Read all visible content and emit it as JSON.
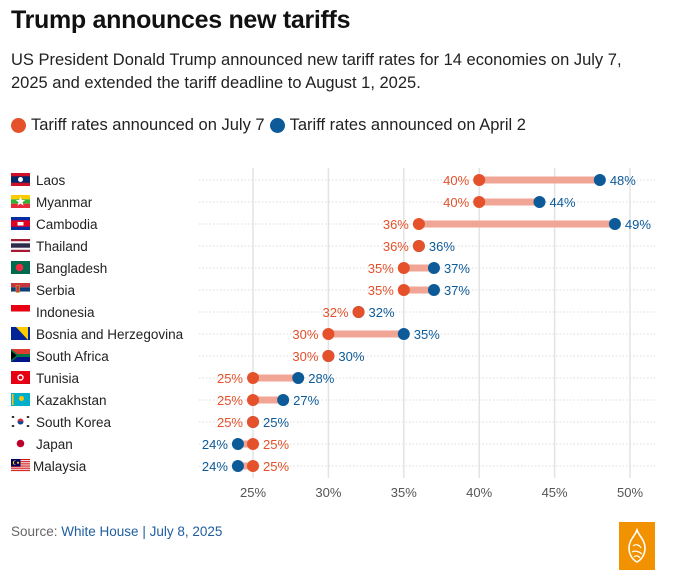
{
  "header": {
    "title": "Trump announces new tariffs",
    "subtitle": "US President Donald Trump announced new tariff rates for 14 economies on July 7, 2025 and extended the tariff deadline to August 1, 2025."
  },
  "legend": {
    "items": [
      {
        "label": "Tariff rates announced on July 7",
        "color": "#e4512b"
      },
      {
        "label": "Tariff rates announced on April 2",
        "color": "#0c5a98"
      }
    ]
  },
  "footer": {
    "source_prefix": "Source: ",
    "source_link": "White House | July 8, 2025",
    "logo": "al-jazeera-logo"
  },
  "chart_data": {
    "type": "dumbbell",
    "title": "Trump announces new tariffs",
    "xlabel": "",
    "ylabel": "",
    "xlim": [
      21.5,
      51
    ],
    "x_ticks": [
      25,
      30,
      35,
      40,
      45,
      50
    ],
    "x_tick_labels": [
      "25%",
      "30%",
      "35%",
      "40%",
      "45%",
      "50%"
    ],
    "grid": true,
    "legend_position": "top-left",
    "colors": {
      "july7": "#e4512b",
      "april2": "#0c5a98",
      "connector": "#f0a595"
    },
    "categories": [
      "Laos",
      "Myanmar",
      "Cambodia",
      "Thailand",
      "Bangladesh",
      "Serbia",
      "Indonesia",
      "Bosnia and Herzegovina",
      "South Africa",
      "Tunisia",
      "Kazakhstan",
      "South Korea",
      "Japan",
      "Malaysia"
    ],
    "flags": [
      "laos-flag",
      "myanmar-flag",
      "cambodia-flag",
      "thailand-flag",
      "bangladesh-flag",
      "serbia-flag",
      "indonesia-flag",
      "bosnia-flag",
      "south-africa-flag",
      "tunisia-flag",
      "kazakhstan-flag",
      "south-korea-flag",
      "japan-flag",
      "malaysia-flag"
    ],
    "series": [
      {
        "name": "Tariff rates announced on July 7",
        "values": [
          40,
          40,
          36,
          36,
          35,
          35,
          32,
          30,
          30,
          25,
          25,
          25,
          25,
          25
        ]
      },
      {
        "name": "Tariff rates announced on April 2",
        "values": [
          48,
          44,
          49,
          36,
          37,
          37,
          32,
          35,
          30,
          28,
          27,
          25,
          24,
          24
        ]
      }
    ]
  }
}
